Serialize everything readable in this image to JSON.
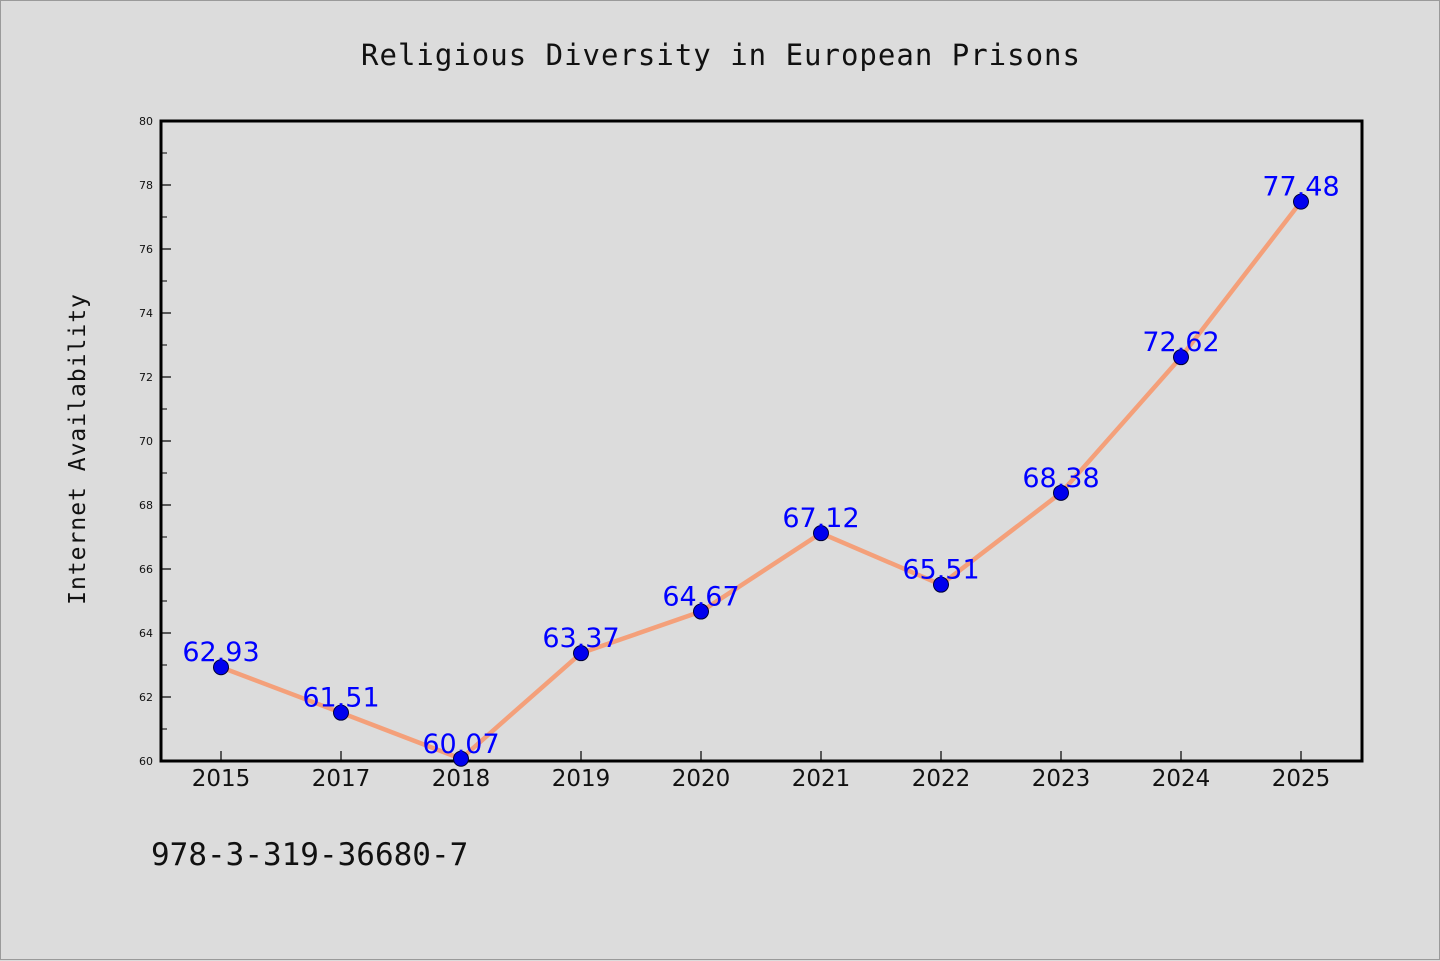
{
  "chart_data": {
    "type": "line",
    "title": "Religious Diversity in European Prisons",
    "xlabel": "",
    "ylabel": "Internet Availability",
    "categories": [
      "2015",
      "2017",
      "2018",
      "2019",
      "2020",
      "2021",
      "2022",
      "2023",
      "2024",
      "2025"
    ],
    "series": [
      {
        "values": [
          62.93,
          61.51,
          60.07,
          63.37,
          64.67,
          67.12,
          65.51,
          68.38,
          72.62,
          77.48
        ],
        "labels": [
          "62.93",
          "61.51",
          "60.07",
          "63.37",
          "64.67",
          "67.12",
          "65.51",
          "68.38",
          "72.62",
          "77.48"
        ]
      }
    ],
    "ylim": [
      60,
      80
    ],
    "yticks": [
      60,
      62,
      64,
      66,
      68,
      70,
      72,
      74,
      76,
      78,
      80
    ],
    "ytick_labels": [
      "60",
      "62",
      "64",
      "66",
      "68",
      "70",
      "72",
      "74",
      "76",
      "78",
      "80"
    ],
    "grid": false,
    "colors": {
      "line": "#f4a07a",
      "marker": "#0000ee",
      "labels": "#0000ff"
    }
  },
  "footnote": "978-3-319-36680-7"
}
